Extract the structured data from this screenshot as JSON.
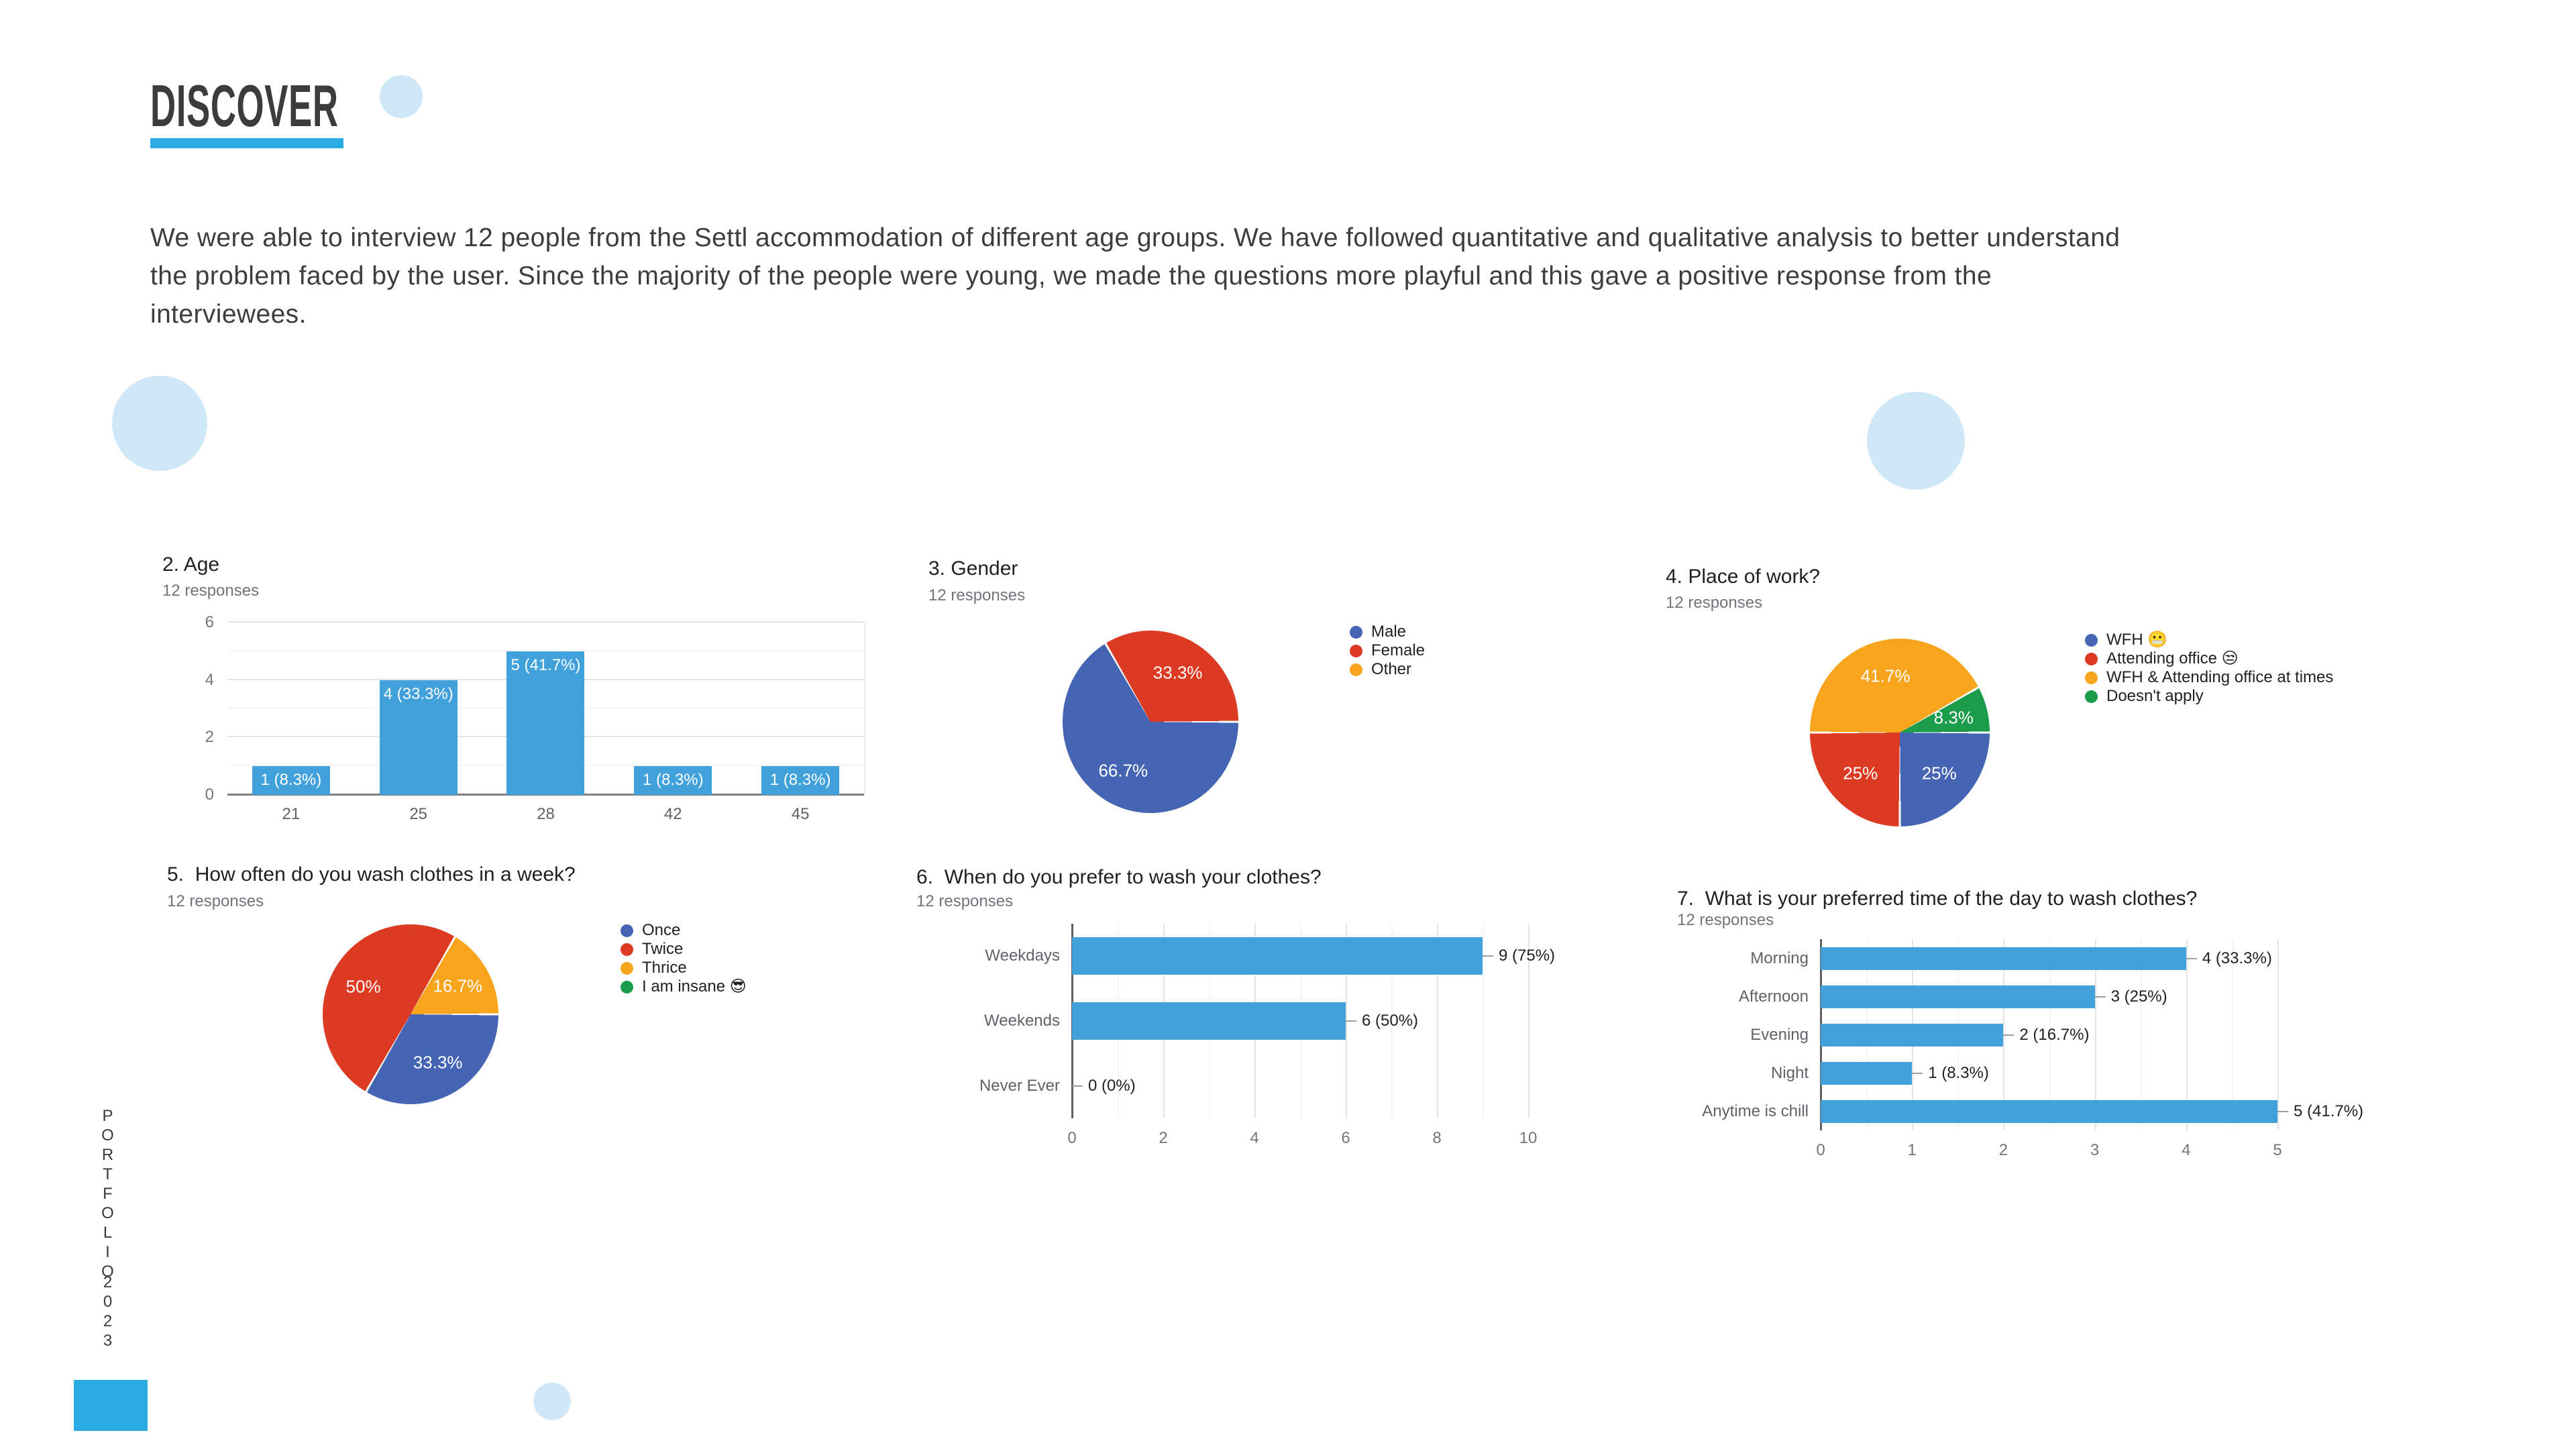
{
  "page": {
    "title": "DISCOVER",
    "intro": "We were able to interview 12 people from the Settl accommodation of different age groups. We have followed quantitative and qualitative analysis to better understand\nthe problem faced by the user. Since the majority of the people were young, we made the questions more playful and this gave a positive response from the\ninterviewees.",
    "sidebar": {
      "word": "PORTFOLIO",
      "year": "2023"
    },
    "colors": {
      "accent_cyan": "#29abe2",
      "light_blue_circle": "#cfe8f8",
      "heading_text": "#3c3c3c",
      "body_text": "#3d3d3d"
    }
  },
  "chart_data": [
    {
      "type": "bar",
      "title": "2. Age",
      "responses_label": "12 responses",
      "categories": [
        "21",
        "25",
        "28",
        "42",
        "45"
      ],
      "values": [
        1,
        4,
        5,
        1,
        1
      ],
      "bar_labels": [
        "1 (8.3%)",
        "4 (33.3%)",
        "5 (41.7%)",
        "1 (8.3%)",
        "1 (8.3%)"
      ],
      "y_ticks": [
        0,
        2,
        4,
        6
      ],
      "ylim": [
        0,
        6
      ],
      "grid": true,
      "bar_color": "#41a2db",
      "xlabel": "",
      "ylabel": ""
    },
    {
      "type": "pie",
      "title": "3. Gender",
      "responses_label": "12 responses",
      "legend_position": "right",
      "rotation_note": "first slice starts at 3 o'clock, clockwise",
      "slices": [
        {
          "label": "Male",
          "value": 8,
          "pct": 66.7,
          "display": "66.7%",
          "color": "#4565b4"
        },
        {
          "label": "Female",
          "value": 4,
          "pct": 33.3,
          "display": "33.3%",
          "color": "#dc3a22"
        },
        {
          "label": "Other",
          "value": 0,
          "pct": 0,
          "display": "",
          "color": "#f8a41d"
        }
      ]
    },
    {
      "type": "pie",
      "title": "4. Place of work?",
      "responses_label": "12 responses",
      "legend_position": "right",
      "rotation_note": "first slice starts at 3 o'clock, clockwise",
      "slices": [
        {
          "label": "WFH 😬",
          "value": 3,
          "pct": 25,
          "display": "25%",
          "color": "#4565b4"
        },
        {
          "label": "Attending office 😒",
          "value": 3,
          "pct": 25,
          "display": "25%",
          "color": "#dc3a22"
        },
        {
          "label": "WFH & Attending office at times",
          "value": 5,
          "pct": 41.7,
          "display": "41.7%",
          "color": "#f8a41d"
        },
        {
          "label": "Doesn't apply",
          "value": 1,
          "pct": 8.3,
          "display": "8.3%",
          "color": "#1a9c4b"
        }
      ]
    },
    {
      "type": "pie",
      "title": "5.  How often do you wash clothes in a week?",
      "responses_label": "12 responses",
      "legend_position": "right",
      "rotation_note": "first slice starts at 3 o'clock, clockwise",
      "slices": [
        {
          "label": "Once",
          "value": 4,
          "pct": 33.3,
          "display": "33.3%",
          "color": "#4565b4"
        },
        {
          "label": "Twice",
          "value": 6,
          "pct": 50,
          "display": "50%",
          "color": "#dc3a22"
        },
        {
          "label": "Thrice",
          "value": 2,
          "pct": 16.7,
          "display": "16.7%",
          "color": "#f8a41d"
        },
        {
          "label": "I am insane 😎",
          "value": 0,
          "pct": 0,
          "display": "",
          "color": "#1a9c4b"
        }
      ]
    },
    {
      "type": "bar_horizontal",
      "title": "6.  When do you prefer to wash your clothes?",
      "responses_label": "12 responses",
      "categories": [
        "Weekdays",
        "Weekends",
        "Never Ever"
      ],
      "values": [
        9,
        6,
        0
      ],
      "value_labels": [
        "9 (75%)",
        "6 (50%)",
        "0 (0%)"
      ],
      "x_ticks": [
        0,
        2,
        4,
        6,
        8,
        10
      ],
      "xlim": [
        0,
        10
      ],
      "grid": true,
      "bar_color": "#41a2db"
    },
    {
      "type": "bar_horizontal",
      "title": "7.  What is your preferred time of the day to wash clothes?",
      "responses_label": "12 responses",
      "categories": [
        "Morning",
        "Afternoon",
        "Evening",
        "Night",
        "Anytime is chill"
      ],
      "values": [
        4,
        3,
        2,
        1,
        5
      ],
      "value_labels": [
        "4 (33.3%)",
        "3 (25%)",
        "2 (16.7%)",
        "1 (8.3%)",
        "5 (41.7%)"
      ],
      "x_ticks": [
        0,
        1,
        2,
        3,
        4,
        5
      ],
      "xlim": [
        0,
        5
      ],
      "grid": true,
      "bar_color": "#41a2db"
    }
  ]
}
